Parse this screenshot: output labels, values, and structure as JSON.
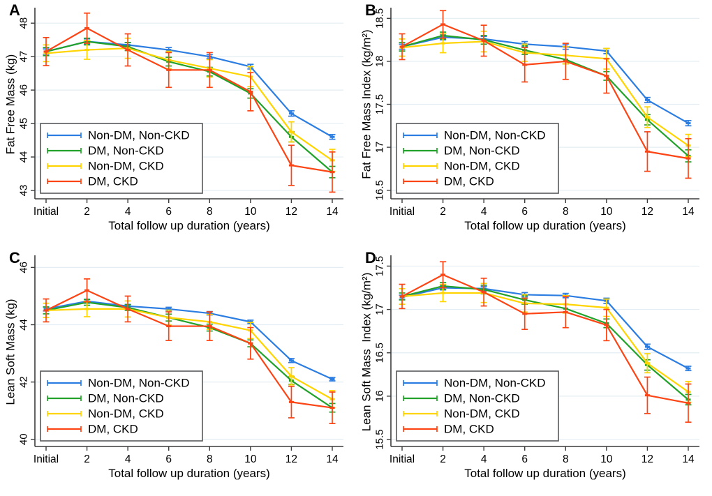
{
  "figure_title": "",
  "style": {
    "background": "#ffffff",
    "grid_color": "#e3edf3",
    "axis_color": "#3c3c3c",
    "legend_border_color": "#58595b",
    "legend_background": "#ffffff",
    "text_color": "#000000"
  },
  "chart_data": [
    {
      "panel_label": "A",
      "type": "line",
      "title": "",
      "xlabel": "Total follow up duration (years)",
      "ylabel": "Fat Free Mass (kg)",
      "x_categories": [
        "Initial",
        "2",
        "4",
        "6",
        "8",
        "10",
        "12",
        "14"
      ],
      "yticks": [
        43,
        44,
        45,
        46,
        47,
        48
      ],
      "ylim": [
        42.75,
        48.4
      ],
      "grid": true,
      "legend_position": "bottom-left",
      "series": [
        {
          "name": "Non-DM, Non-CKD",
          "color": "#2c7de1",
          "values": [
            47.15,
            47.45,
            47.35,
            47.2,
            47.0,
            46.7,
            45.3,
            44.6
          ],
          "errors": [
            0.08,
            0.08,
            0.07,
            0.07,
            0.06,
            0.07,
            0.08,
            0.07
          ]
        },
        {
          "name": "DM, Non-CKD",
          "color": "#22a22a",
          "values": [
            47.15,
            47.45,
            47.3,
            46.85,
            46.55,
            45.9,
            44.6,
            43.55
          ],
          "errors": [
            0.12,
            0.1,
            0.12,
            0.13,
            0.13,
            0.14,
            0.15,
            0.17
          ]
        },
        {
          "name": "Non-DM, CKD",
          "color": "#ffd400",
          "values": [
            47.1,
            47.2,
            47.25,
            46.9,
            46.65,
            46.4,
            44.75,
            43.9
          ],
          "errors": [
            0.25,
            0.28,
            0.3,
            0.26,
            0.26,
            0.3,
            0.3,
            0.33
          ]
        },
        {
          "name": "DM, CKD",
          "color": "#fc4414",
          "values": [
            47.15,
            47.85,
            47.2,
            46.6,
            46.6,
            45.95,
            43.75,
            43.55
          ],
          "errors": [
            0.42,
            0.45,
            0.48,
            0.52,
            0.52,
            0.57,
            0.6,
            0.6
          ]
        }
      ]
    },
    {
      "panel_label": "B",
      "type": "line",
      "title": "",
      "xlabel": "Total follow up duration (years)",
      "ylabel": "Fat Free Mass Index (kg/m²)",
      "x_categories": [
        "Initial",
        "2",
        "4",
        "6",
        "8",
        "10",
        "12",
        "14"
      ],
      "yticks": [
        16.5,
        17,
        17.5,
        18,
        18.5
      ],
      "ylim": [
        16.4,
        18.6
      ],
      "grid": true,
      "legend_position": "bottom-left",
      "series": [
        {
          "name": "Non-DM, Non-CKD",
          "color": "#2c7de1",
          "values": [
            18.17,
            18.28,
            18.26,
            18.2,
            18.17,
            18.12,
            17.55,
            17.28
          ],
          "errors": [
            0.03,
            0.03,
            0.03,
            0.03,
            0.03,
            0.03,
            0.03,
            0.03
          ]
        },
        {
          "name": "DM, Non-CKD",
          "color": "#22a22a",
          "values": [
            18.17,
            18.3,
            18.25,
            18.13,
            18.02,
            17.83,
            17.32,
            16.9
          ],
          "errors": [
            0.05,
            0.04,
            0.05,
            0.05,
            0.05,
            0.05,
            0.06,
            0.07
          ]
        },
        {
          "name": "Non-DM, CKD",
          "color": "#ffd400",
          "values": [
            18.16,
            18.21,
            18.23,
            18.1,
            18.07,
            18.03,
            17.35,
            17.02
          ],
          "errors": [
            0.1,
            0.11,
            0.12,
            0.1,
            0.1,
            0.12,
            0.12,
            0.13
          ]
        },
        {
          "name": "DM, CKD",
          "color": "#fc4414",
          "values": [
            18.17,
            18.43,
            18.24,
            17.96,
            18.0,
            17.83,
            16.95,
            16.87
          ],
          "errors": [
            0.15,
            0.16,
            0.18,
            0.2,
            0.21,
            0.2,
            0.23,
            0.23
          ]
        }
      ]
    },
    {
      "panel_label": "C",
      "type": "line",
      "title": "",
      "xlabel": "Total follow up duration (years)",
      "ylabel": "Lean Soft Mass (kg)",
      "x_categories": [
        "Initial",
        "2",
        "4",
        "6",
        "8",
        "10",
        "12",
        "14"
      ],
      "yticks": [
        40,
        42,
        44,
        46
      ],
      "ylim": [
        39.75,
        46.35
      ],
      "grid": true,
      "legend_position": "bottom-left",
      "series": [
        {
          "name": "Non-DM, Non-CKD",
          "color": "#2c7de1",
          "values": [
            44.55,
            44.82,
            44.65,
            44.55,
            44.4,
            44.1,
            42.75,
            42.1
          ],
          "errors": [
            0.07,
            0.07,
            0.06,
            0.06,
            0.06,
            0.06,
            0.07,
            0.06
          ]
        },
        {
          "name": "DM, Non-CKD",
          "color": "#22a22a",
          "values": [
            44.5,
            44.78,
            44.6,
            44.25,
            43.9,
            43.35,
            42.05,
            41.1
          ],
          "errors": [
            0.12,
            0.1,
            0.1,
            0.12,
            0.12,
            0.12,
            0.13,
            0.15
          ]
        },
        {
          "name": "Non-DM, CKD",
          "color": "#ffd400",
          "values": [
            44.5,
            44.55,
            44.55,
            44.25,
            44.1,
            43.8,
            42.2,
            41.4
          ],
          "errors": [
            0.25,
            0.27,
            0.28,
            0.26,
            0.26,
            0.28,
            0.3,
            0.3
          ]
        },
        {
          "name": "DM, CKD",
          "color": "#fc4414",
          "values": [
            44.5,
            45.2,
            44.55,
            43.95,
            43.95,
            43.35,
            41.3,
            41.1
          ],
          "errors": [
            0.4,
            0.4,
            0.45,
            0.5,
            0.5,
            0.55,
            0.55,
            0.55
          ]
        }
      ]
    },
    {
      "panel_label": "D",
      "type": "line",
      "title": "",
      "xlabel": "Total follow up duration (years)",
      "ylabel": "Lean Soft Mass  Index (kg/m²)",
      "x_categories": [
        "Initial",
        "2",
        "4",
        "6",
        "8",
        "10",
        "12",
        "14"
      ],
      "yticks": [
        15.5,
        16,
        16.5,
        17,
        17.5
      ],
      "ylim": [
        15.42,
        17.6
      ],
      "grid": true,
      "legend_position": "bottom-left",
      "series": [
        {
          "name": "Non-DM, Non-CKD",
          "color": "#2c7de1",
          "values": [
            17.14,
            17.25,
            17.24,
            17.17,
            17.16,
            17.1,
            16.57,
            16.32
          ],
          "errors": [
            0.025,
            0.025,
            0.025,
            0.025,
            0.025,
            0.03,
            0.03,
            0.025
          ]
        },
        {
          "name": "DM, Non-CKD",
          "color": "#22a22a",
          "values": [
            17.15,
            17.27,
            17.23,
            17.11,
            17.01,
            16.84,
            16.36,
            15.96
          ],
          "errors": [
            0.04,
            0.04,
            0.05,
            0.05,
            0.05,
            0.05,
            0.06,
            0.06
          ]
        },
        {
          "name": "Non-DM, CKD",
          "color": "#ffd400",
          "values": [
            17.15,
            17.19,
            17.19,
            17.07,
            17.06,
            17.02,
            16.38,
            16.05
          ],
          "errors": [
            0.09,
            0.1,
            0.11,
            0.1,
            0.1,
            0.1,
            0.11,
            0.12
          ]
        },
        {
          "name": "DM, CKD",
          "color": "#fc4414",
          "values": [
            17.15,
            17.4,
            17.2,
            16.95,
            16.97,
            16.82,
            16.01,
            15.92
          ],
          "errors": [
            0.14,
            0.15,
            0.16,
            0.18,
            0.18,
            0.18,
            0.21,
            0.22
          ]
        }
      ]
    }
  ]
}
